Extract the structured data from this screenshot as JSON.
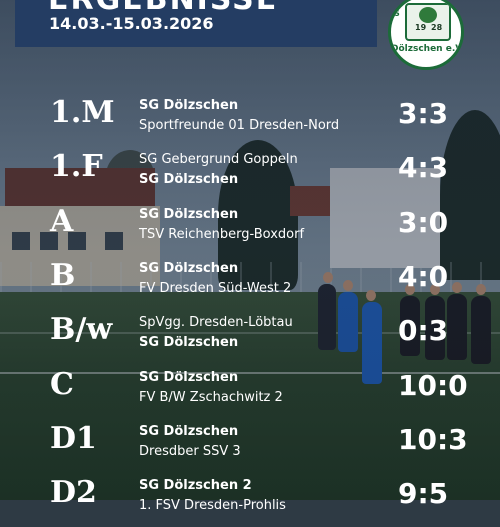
{
  "header": {
    "title": "ERGEBNISSE",
    "date_range": "14.03.-15.03.2026"
  },
  "logo": {
    "year_left": "19",
    "year_right": "28",
    "club_name": "Dölzschen e.V.",
    "side_letter": "S"
  },
  "results": [
    {
      "code": "1.M",
      "home": "SG Dölzschen",
      "away": "Sportfreunde 01 Dresden-Nord",
      "score": "3:3",
      "bold": "home"
    },
    {
      "code": "1.F",
      "home": "SG Gebergrund Goppeln",
      "away": "SG Dölzschen",
      "score": "4:3",
      "bold": "away"
    },
    {
      "code": "A",
      "home": "SG Dölzschen",
      "away": "TSV Reichenberg-Boxdorf",
      "score": "3:0",
      "bold": "home"
    },
    {
      "code": "B",
      "home": "SG Dölzschen",
      "away": "FV Dresden Süd-West 2",
      "score": "4:0",
      "bold": "home"
    },
    {
      "code": "B/w",
      "home": "SpVgg. Dresden-Löbtau",
      "away": "SG Dölzschen",
      "score": "0:3",
      "bold": "away"
    },
    {
      "code": "C",
      "home": "SG Dölzschen",
      "away": "FV B/W Zschachwitz 2",
      "score": "10:0",
      "bold": "home"
    },
    {
      "code": "D1",
      "home": "SG Dölzschen",
      "away": "Dresdber SSV 3",
      "score": "10:3",
      "bold": "home"
    },
    {
      "code": "D2",
      "home": "SG Dölzschen 2",
      "away": "1. FSV Dresden-Prohlis",
      "score": "9:5",
      "bold": "home"
    }
  ]
}
